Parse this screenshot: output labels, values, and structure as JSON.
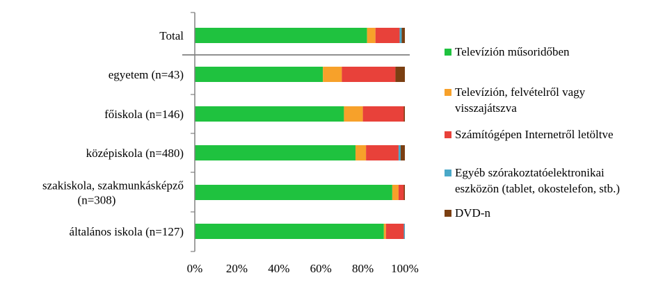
{
  "chart_data": {
    "type": "bar",
    "orientation": "horizontal",
    "stacked": true,
    "percent": true,
    "title": "",
    "xlabel": "",
    "ylabel": "",
    "xlim": [
      0,
      100
    ],
    "x_ticks": [
      "0%",
      "20%",
      "40%",
      "60%",
      "80%",
      "100%"
    ],
    "grid": false,
    "legend_position": "right",
    "categories": [
      {
        "lines": [
          "Total"
        ]
      },
      {
        "lines": [
          "egyetem (n=43)"
        ]
      },
      {
        "lines": [
          "főiskola (n=146)"
        ]
      },
      {
        "lines": [
          "középiskola (n=480)"
        ]
      },
      {
        "lines": [
          "szakiskola, szakmunkásképző",
          "(n=308)"
        ]
      },
      {
        "lines": [
          "általános iskola (n=127)"
        ]
      }
    ],
    "series": [
      {
        "name": "Televízión műsoridőben",
        "legend_lines": [
          "Televízión műsoridőben"
        ],
        "color": "#1fc23f",
        "values": [
          82,
          61,
          71,
          76.5,
          94,
          90
        ]
      },
      {
        "name": "Televízión, felvételről vagy visszajátszva",
        "legend_lines": [
          "Televízión, felvételről vagy",
          "visszajátszva"
        ],
        "color": "#f7a12a",
        "values": [
          4,
          9,
          9,
          5,
          3,
          1
        ]
      },
      {
        "name": "Számítógépen Internetről letöltve",
        "legend_lines": [
          "Számítógépen Internetről letöltve"
        ],
        "color": "#e8413a",
        "values": [
          11.5,
          25.5,
          19.5,
          15.5,
          2.5,
          8.5
        ]
      },
      {
        "name": "Egyéb szórakoztatóelektronikai eszközön (tablet, okostelefon, stb.)",
        "legend_lines": [
          "Egyéb szórakoztatóelektronikai",
          "eszközön (tablet, okostelefon, stb.)"
        ],
        "color": "#4aa8c8",
        "values": [
          1,
          0,
          0,
          1,
          0,
          0.5
        ]
      },
      {
        "name": "DVD-n",
        "legend_lines": [
          "DVD-n"
        ],
        "color": "#7b3f12",
        "values": [
          1.5,
          4.5,
          0.5,
          2,
          0.5,
          0
        ]
      }
    ]
  }
}
